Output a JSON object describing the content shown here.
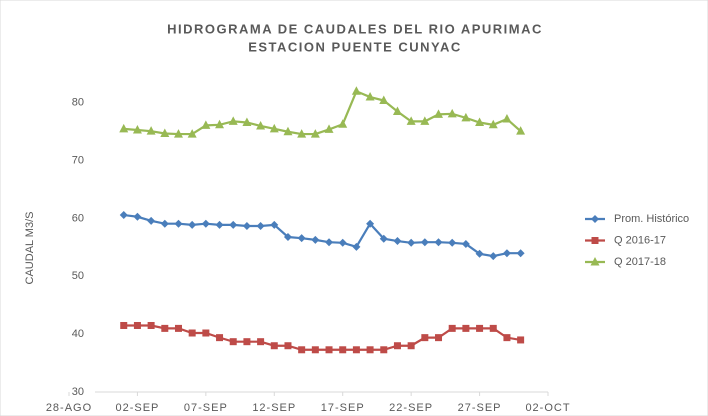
{
  "chart_data": {
    "type": "line",
    "title": [
      "HIDROGRAMA DE CAUDALES DEL RIO APURIMAC",
      "ESTACION PUENTE CUNYAC"
    ],
    "y_label": "CAUDAL M3/S",
    "x": [
      "09-01",
      "09-02",
      "09-03",
      "09-04",
      "09-05",
      "09-06",
      "09-07",
      "09-08",
      "09-09",
      "09-10",
      "09-11",
      "09-12",
      "09-13",
      "09-14",
      "09-15",
      "09-16",
      "09-17",
      "09-18",
      "09-19",
      "09-20",
      "09-21",
      "09-22",
      "09-23",
      "09-24",
      "09-25",
      "09-26",
      "09-27",
      "09-28",
      "09-29",
      "09-30"
    ],
    "series": [
      {
        "name": "Prom. Histórico",
        "color": "#4a7ebb",
        "marker": "diamond",
        "values": [
          60.6,
          60.3,
          59.6,
          59.1,
          59.1,
          58.9,
          59.1,
          58.9,
          58.9,
          58.7,
          58.7,
          58.9,
          56.8,
          56.6,
          56.3,
          55.9,
          55.8,
          55.1,
          59.1,
          56.5,
          56.1,
          55.8,
          55.9,
          55.9,
          55.8,
          55.6,
          53.9,
          53.5,
          54.0,
          54.0
        ]
      },
      {
        "name": "Q 2016-17",
        "color": "#be4b48",
        "marker": "square",
        "values": [
          41.5,
          41.5,
          41.5,
          41,
          41,
          40.2,
          40.2,
          39.4,
          38.7,
          38.7,
          38.7,
          38,
          38,
          37.3,
          37.3,
          37.3,
          37.3,
          37.3,
          37.3,
          37.3,
          38,
          38,
          39.4,
          39.4,
          41,
          41,
          41,
          41,
          39.4,
          39
        ]
      },
      {
        "name": "Q 2017-18",
        "color": "#98b954",
        "marker": "triangle",
        "values": [
          75.5,
          75.3,
          75.1,
          74.7,
          74.6,
          74.6,
          76.1,
          76.2,
          76.8,
          76.6,
          76,
          75.5,
          75,
          74.6,
          74.6,
          75.4,
          76.3,
          82,
          81,
          80.4,
          78.5,
          76.8,
          76.8,
          78,
          78.1,
          77.4,
          76.6,
          76.2,
          77.2,
          75.1
        ]
      }
    ],
    "xlim": [
      "08-28",
      "10-02"
    ],
    "xticks": [
      {
        "value": "08-28",
        "label": "28-AGO"
      },
      {
        "value": "09-02",
        "label": "02-SEP"
      },
      {
        "value": "09-07",
        "label": "07-SEP"
      },
      {
        "value": "09-12",
        "label": "12-SEP"
      },
      {
        "value": "09-17",
        "label": "17-SEP"
      },
      {
        "value": "09-22",
        "label": "22-SEP"
      },
      {
        "value": "09-27",
        "label": "27-SEP"
      },
      {
        "value": "10-02",
        "label": "02-OCT"
      }
    ],
    "ylim": [
      30,
      90
    ],
    "yticks": [
      30,
      40,
      50,
      60,
      70,
      80
    ],
    "grid": false,
    "legend": "right"
  }
}
